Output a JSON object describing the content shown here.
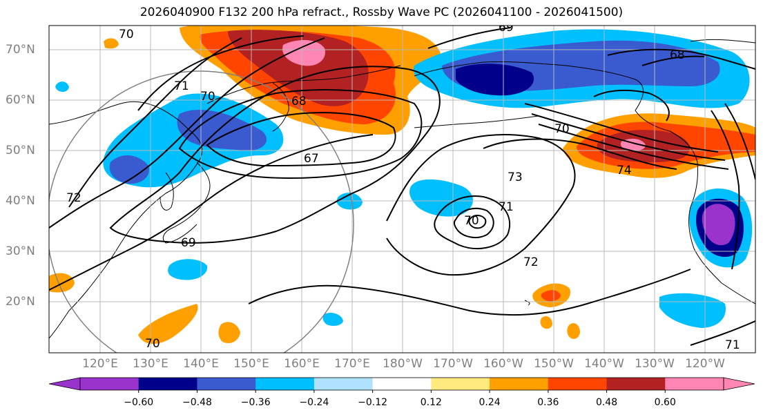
{
  "title": "2026040900 F132 200 hPa refract., Rossby Wave PC (2026041100 - 2026041500)",
  "lat_labels": [
    "70°N",
    "60°N",
    "50°N",
    "40°N",
    "30°N",
    "20°N"
  ],
  "lon_labels": [
    "120°E",
    "130°E",
    "140°E",
    "150°E",
    "160°E",
    "170°E",
    "180°W",
    "170°W",
    "160°W",
    "150°W",
    "140°W",
    "130°W",
    "120°W"
  ],
  "contour_labels": [
    "70",
    "69",
    "68",
    "71",
    "70",
    "68",
    "67",
    "69",
    "72",
    "70",
    "73",
    "71",
    "70",
    "74",
    "72",
    "70",
    "71"
  ],
  "colorbar": {
    "ticks": [
      "−0.60",
      "−0.48",
      "−0.36",
      "−0.24",
      "−0.12",
      "0.12",
      "0.24",
      "0.36",
      "0.48",
      "0.60"
    ],
    "colors": [
      "#9933cc",
      "#00008b",
      "#3a5bd0",
      "#00bfff",
      "#b0e2ff",
      "#ffffff",
      "#ffea80",
      "#ff9f00",
      "#ff4500",
      "#b22222",
      "#ff85b3"
    ]
  }
}
